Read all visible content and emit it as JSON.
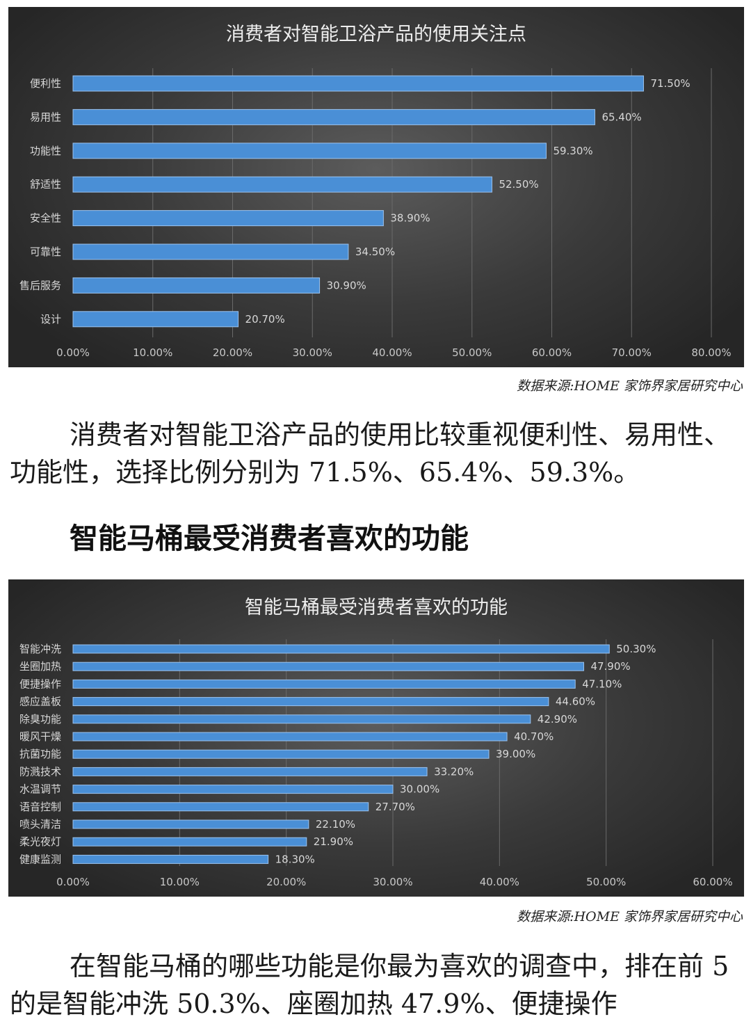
{
  "chart_data": [
    {
      "type": "bar",
      "orientation": "horizontal",
      "title": "消费者对智能卫浴产品的使用关注点",
      "categories": [
        "便利性",
        "易用性",
        "功能性",
        "舒适性",
        "安全性",
        "可靠性",
        "售后服务",
        "设计"
      ],
      "values": [
        71.5,
        65.4,
        59.3,
        52.5,
        38.9,
        34.5,
        30.9,
        20.7
      ],
      "value_labels": [
        "71.50%",
        "65.40%",
        "59.30%",
        "52.50%",
        "38.90%",
        "34.50%",
        "30.90%",
        "20.70%"
      ],
      "xlim": [
        0,
        80
      ],
      "x_ticks": [
        "0.00%",
        "10.00%",
        "20.00%",
        "30.00%",
        "40.00%",
        "50.00%",
        "60.00%",
        "70.00%",
        "80.00%"
      ],
      "grid": "vertical",
      "bar_color": "#4a8fd6",
      "background_color": "#3a3a3a"
    },
    {
      "type": "bar",
      "orientation": "horizontal",
      "title": "智能马桶最受消费者喜欢的功能",
      "categories": [
        "智能冲洗",
        "坐圈加热",
        "便捷操作",
        "感应盖板",
        "除臭功能",
        "暖风干燥",
        "抗菌功能",
        "防溅技术",
        "水温调节",
        "语音控制",
        "喷头清洁",
        "柔光夜灯",
        "健康监测"
      ],
      "values": [
        50.3,
        47.9,
        47.1,
        44.6,
        42.9,
        40.7,
        39.0,
        33.2,
        30.0,
        27.7,
        22.1,
        21.9,
        18.3
      ],
      "value_labels": [
        "50.30%",
        "47.90%",
        "47.10%",
        "44.60%",
        "42.90%",
        "40.70%",
        "39.00%",
        "33.20%",
        "30.00%",
        "27.70%",
        "22.10%",
        "21.90%",
        "18.30%"
      ],
      "xlim": [
        0,
        60
      ],
      "x_ticks": [
        "0.00%",
        "10.00%",
        "20.00%",
        "30.00%",
        "40.00%",
        "50.00%",
        "60.00%"
      ],
      "grid": "vertical",
      "bar_color": "#4a8fd6",
      "background_color": "#3a3a3a"
    }
  ],
  "source1": "数据来源:HOME 家饰界家居研究中心",
  "paragraph1": "消费者对智能卫浴产品的使用比较重视便利性、易用性、功能性，选择比例分别为 71.5%、65.4%、59.3%。",
  "heading": "智能马桶最受消费者喜欢的功能",
  "source2": "数据来源:HOME 家饰界家居研究中心",
  "paragraph2": "在智能马桶的哪些功能是你最为喜欢的调查中，排在前 5 的是智能冲洗 50.3%、座圈加热 47.9%、便捷操作"
}
